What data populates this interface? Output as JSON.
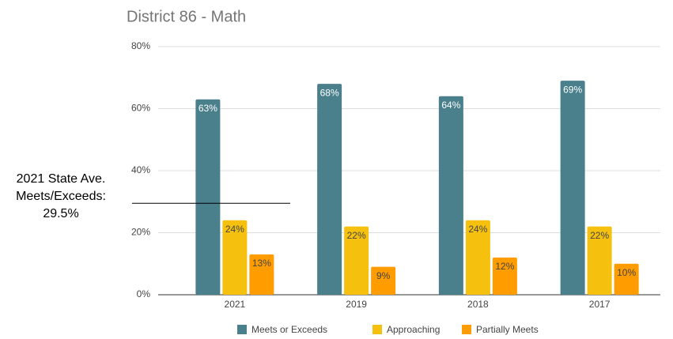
{
  "chart_data": {
    "type": "bar",
    "title": "District 86 - Math",
    "categories": [
      "2021",
      "2019",
      "2018",
      "2017"
    ],
    "series": [
      {
        "name": "Meets or Exceeds",
        "color": "#4a7f8c",
        "values": [
          63,
          68,
          64,
          69
        ],
        "value_labels": [
          "63%",
          "68%",
          "64%",
          "69%"
        ]
      },
      {
        "name": "Approaching",
        "color": "#f5c10e",
        "values": [
          24,
          22,
          24,
          22
        ],
        "value_labels": [
          "24%",
          "22%",
          "24%",
          "22%"
        ]
      },
      {
        "name": "Partially Meets",
        "color": "#ff9c00",
        "values": [
          13,
          9,
          12,
          10
        ],
        "value_labels": [
          "13%",
          "9%",
          "12%",
          "10%"
        ]
      }
    ],
    "ylim": [
      0,
      80
    ],
    "yticks": [
      {
        "value": 0,
        "label": "0%"
      },
      {
        "value": 20,
        "label": "20%"
      },
      {
        "value": 40,
        "label": "40%"
      },
      {
        "value": 60,
        "label": "60%"
      },
      {
        "value": 80,
        "label": "80%"
      }
    ],
    "grid": true,
    "legend": "bottom",
    "annotation": {
      "lines": [
        "2021 State Ave.",
        "Meets/Exceeds:",
        "29.5%"
      ],
      "value": 29.5
    }
  }
}
